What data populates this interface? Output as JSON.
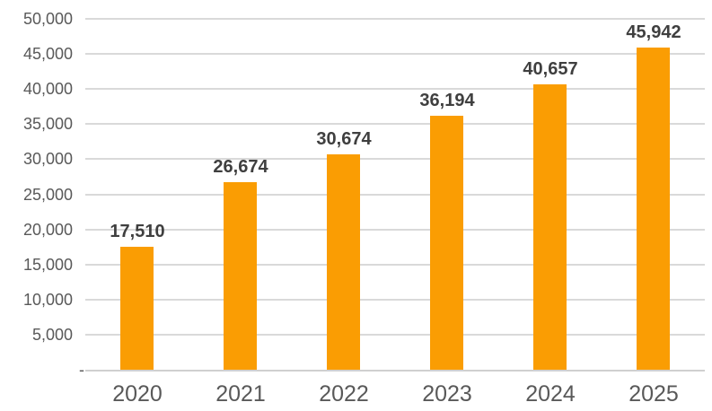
{
  "chart": {
    "background_color": "#FFFFFF",
    "bar_color": "#FA9D03",
    "gridline_color": "#D9D9D9",
    "axis_line_color": "#D0D0D0",
    "tick_label_color": "#595959",
    "data_label_color": "#3F3F3F"
  },
  "chart_data": {
    "type": "bar",
    "title": "",
    "xlabel": "",
    "ylabel": "",
    "categories": [
      "2020",
      "2021",
      "2022",
      "2023",
      "2024",
      "2025"
    ],
    "values": [
      17510,
      26674,
      30674,
      36194,
      40657,
      45942
    ],
    "value_labels": [
      "17,510",
      "26,674",
      "30,674",
      "36,194",
      "40,657",
      "45,942"
    ],
    "ylim": [
      0,
      50000
    ],
    "ytick_step": 5000,
    "ytick_labels_top_to_bottom": [
      "50,000",
      "45,000",
      "40,000",
      "35,000",
      "30,000",
      "25,000",
      "20,000",
      "15,000",
      "10,000",
      "5,000",
      "-"
    ],
    "grid": true,
    "legend": false,
    "data_labels_shown": true
  }
}
